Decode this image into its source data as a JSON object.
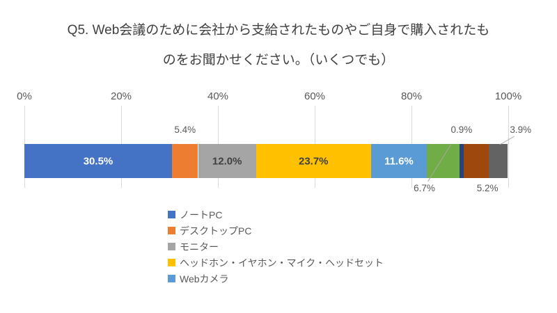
{
  "title": {
    "line1": "Q5. Web会議のために会社から支給されたものやご自身で購入されたも",
    "line2": "のをお聞かせください。（いくつでも）"
  },
  "chart_data": {
    "type": "bar",
    "subtype": "stacked-horizontal-single-bar",
    "title": "Q5. Web会議のために会社から支給されたものやご自身で購入されたものをお聞かせください。（いくつでも）",
    "x_axis": {
      "min": 0,
      "max": 100,
      "ticks": [
        "0%",
        "20%",
        "40%",
        "60%",
        "80%",
        "100%"
      ],
      "gridlines": true,
      "gridline_color": "#D9D9D9"
    },
    "segments": [
      {
        "series": "ノートPC",
        "value": 30.5,
        "label": "30.5%",
        "color": "#4472C4",
        "label_placement": "inside",
        "label_color": "#FFFFFF"
      },
      {
        "series": "デスクトップPC",
        "value": 5.4,
        "label": "5.4%",
        "color": "#ED7D31",
        "label_placement": "above",
        "label_color": "#595959"
      },
      {
        "series": "モニター",
        "value": 12.0,
        "label": "12.0%",
        "color": "#A5A5A5",
        "label_placement": "inside",
        "label_color": "#404040"
      },
      {
        "series": "ヘッドホン・イヤホン・マイク・ヘッドセット",
        "value": 23.7,
        "label": "23.7%",
        "color": "#FFC000",
        "label_placement": "inside",
        "label_color": "#404040"
      },
      {
        "series": "Webカメラ",
        "value": 11.6,
        "label": "11.6%",
        "color": "#5B9BD5",
        "label_placement": "inside",
        "label_color": "#FFFFFF"
      },
      {
        "series": "",
        "value": 6.7,
        "label": "6.7%",
        "color": "#70AD47",
        "label_placement": "below",
        "label_color": "#595959",
        "label_dx": -27,
        "leader": "into-segment"
      },
      {
        "series": "",
        "value": 0.9,
        "label": "0.9%",
        "color": "#264478",
        "label_placement": "above",
        "label_color": "#595959"
      },
      {
        "series": "",
        "value": 5.2,
        "label": "5.2%",
        "color": "#9E480E",
        "label_placement": "below",
        "label_color": "#595959",
        "label_dx": 16
      },
      {
        "series": "",
        "value": 3.9,
        "label": "3.9%",
        "color": "#636363",
        "label_placement": "above",
        "label_color": "#595959",
        "label_dx": 32,
        "leader": "from-label"
      }
    ],
    "legend": {
      "position": "bottom",
      "items": [
        {
          "label": "ノートPC",
          "color": "#4472C4"
        },
        {
          "label": "デスクトップPC",
          "color": "#ED7D31"
        },
        {
          "label": "モニター",
          "color": "#A5A5A5"
        },
        {
          "label": "ヘッドホン・イヤホン・マイク・ヘッドセット",
          "color": "#FFC000"
        },
        {
          "label": "Webカメラ",
          "color": "#5B9BD5"
        }
      ]
    },
    "style": {
      "background": "#FFFFFF",
      "title_color": "#404040",
      "axis_text_color": "#595959",
      "leader_line_color": "#A6A6A6"
    }
  }
}
